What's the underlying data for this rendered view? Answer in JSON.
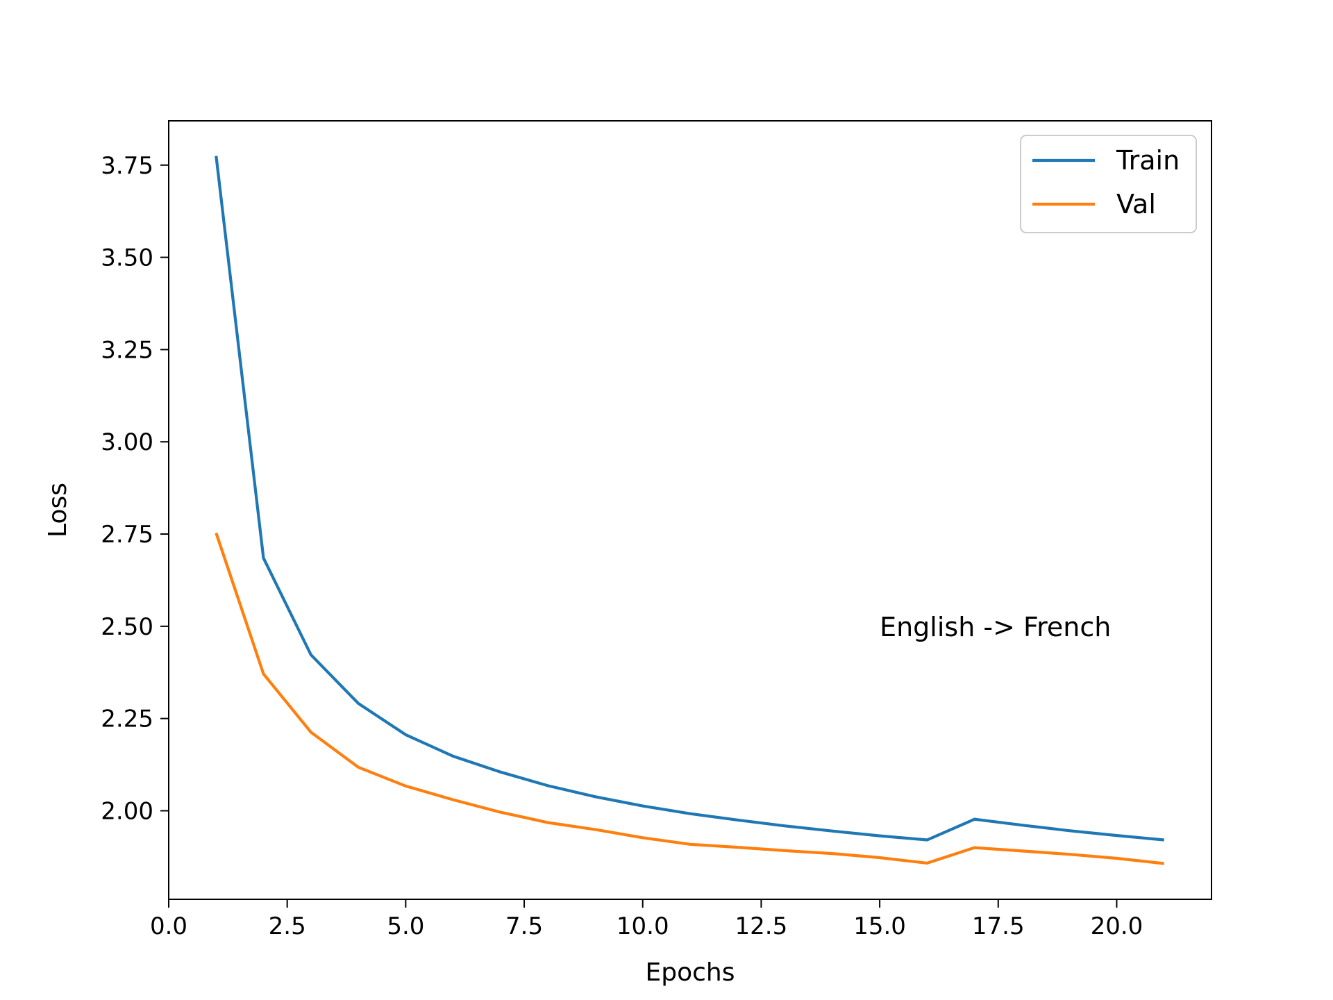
{
  "chart_data": {
    "type": "line",
    "xlabel": "Epochs",
    "ylabel": "Loss",
    "xlim": [
      0,
      22
    ],
    "ylim": [
      1.76,
      3.87
    ],
    "xticks": [
      0.0,
      2.5,
      5.0,
      7.5,
      10.0,
      12.5,
      15.0,
      17.5,
      20.0
    ],
    "xtick_labels": [
      "0.0",
      "2.5",
      "5.0",
      "7.5",
      "10.0",
      "12.5",
      "15.0",
      "17.5",
      "20.0"
    ],
    "yticks": [
      2.0,
      2.25,
      2.5,
      2.75,
      3.0,
      3.25,
      3.5,
      3.75
    ],
    "ytick_labels": [
      "2.00",
      "2.25",
      "2.50",
      "2.75",
      "3.00",
      "3.25",
      "3.50",
      "3.75"
    ],
    "x": [
      1,
      2,
      3,
      4,
      5,
      6,
      7,
      8,
      9,
      10,
      11,
      12,
      13,
      14,
      15,
      16,
      17,
      18,
      19,
      20,
      21
    ],
    "series": [
      {
        "name": "Train",
        "color": "#1f77b4",
        "values": [
          3.775,
          2.685,
          2.423,
          2.291,
          2.206,
          2.148,
          2.105,
          2.068,
          2.038,
          2.013,
          1.992,
          1.975,
          1.959,
          1.945,
          1.932,
          1.921,
          1.977,
          1.961,
          1.946,
          1.933,
          1.921
        ]
      },
      {
        "name": "Val",
        "color": "#ff7f0e",
        "values": [
          2.753,
          2.371,
          2.213,
          2.118,
          2.067,
          2.03,
          1.996,
          1.968,
          1.949,
          1.927,
          1.909,
          1.901,
          1.892,
          1.884,
          1.873,
          1.858,
          1.9,
          1.891,
          1.882,
          1.871,
          1.857
        ]
      }
    ],
    "annotation": "English -> French",
    "legend_location": "upper right",
    "grid": false
  }
}
